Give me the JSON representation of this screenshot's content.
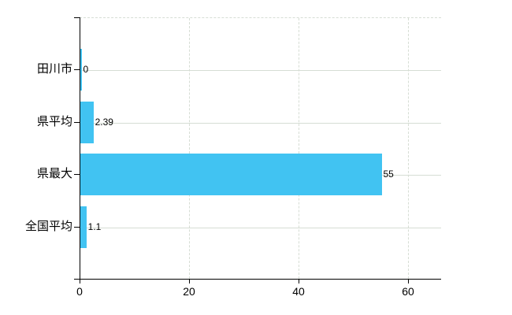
{
  "chart_data": {
    "type": "bar",
    "orientation": "horizontal",
    "title": "",
    "categories": [
      "田川市",
      "県平均",
      "県最大",
      "全国平均"
    ],
    "values": [
      0,
      2.39,
      55,
      1.1
    ],
    "value_labels": [
      "0",
      "2.39",
      "55",
      "1.1"
    ],
    "xlim": [
      0,
      66
    ],
    "x_ticks": [
      0,
      20,
      40,
      60
    ],
    "x_tick_labels": [
      "0",
      "20",
      "40",
      "60"
    ],
    "legend": "none",
    "grid": "on",
    "bar_color": "#41c3f2",
    "gridline_color": "#d6ddd4",
    "axis_color": "#000000",
    "text_color": "#000000",
    "background_color": "#ffffff"
  }
}
